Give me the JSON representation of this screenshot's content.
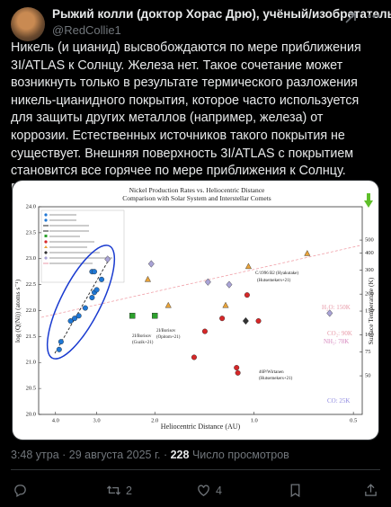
{
  "post": {
    "author": {
      "name": "Рыжий колли (доктор Хорас Дрю), учёный/изобретатель",
      "handle": "@RedCollie1"
    },
    "text": "Никель (и цианид) высвобождаются по мере приближения 3I/ATLAS к Солнцу. Железа нет. Такое сочетание может возникнуть только в результате термического разложения никель-цианидного покрытия, которое часто используется для защиты других металлов (например, железа) от коррозии. Естественных источников такого покрытия не существует. Внешняя поверхность 3I/ATLAS с покрытием становится все горячее по мере приближения к Солнцу. Поэтому мы начинаем видеть никель и цианид в его газообразной коме.",
    "image": {
      "type": "scatter",
      "title": "Nickel Production Rates vs. Heliocentric Distance",
      "subtitle": "Comparison with Solar System and Interstellar Comets",
      "x_label": "Heliocentric Distance (AU)",
      "y_label": "log (Q(Ni)) (atoms s⁻¹)",
      "y2_label": "Surface Temperature (K)",
      "xscale": "log",
      "xlim": [
        4.5,
        0.47
      ],
      "xticks": [
        {
          "value": 4,
          "label": "4.0"
        },
        {
          "value": 3,
          "label": "3.0"
        },
        {
          "value": 2,
          "label": "2.0"
        },
        {
          "value": 1,
          "label": "1.0"
        },
        0.5
      ],
      "ylim": [
        20,
        24
      ],
      "yticks": [
        {
          "value": 20,
          "label": "20.0"
        },
        20.5,
        {
          "value": 21,
          "label": "21.0"
        },
        21.5,
        {
          "value": 22,
          "label": "22.0"
        },
        22.5,
        {
          "value": 23,
          "label": "23.0"
        },
        23.5,
        {
          "value": 24,
          "label": "24.0"
        }
      ],
      "y2scale": "log",
      "y2lim": [
        26,
        880
      ],
      "y2ticks": [
        500,
        400,
        300,
        200,
        150,
        100,
        75,
        50
      ],
      "series": [
        {
          "color": "#1f77d4",
          "marker": "circle",
          "x": [
            3.9,
            3.85,
            3.6,
            3.5,
            3.4,
            3.25,
            3.1,
            3.05,
            3.0,
            3.1,
            3.05,
            2.9
          ],
          "y": [
            21.25,
            21.4,
            21.8,
            21.85,
            21.9,
            22.05,
            22.25,
            22.35,
            22.4,
            22.75,
            22.75,
            22.6
          ]
        },
        {
          "color": "#2ca02c",
          "marker": "square",
          "x": [
            2.34,
            2.0
          ],
          "y": [
            21.9,
            21.9
          ]
        },
        {
          "color": "#d62728",
          "marker": "circle",
          "x": [
            1.41,
            1.52,
            1.25,
            1.05,
            0.97,
            1.13,
            1.12
          ],
          "y": [
            21.6,
            21.1,
            21.85,
            22.3,
            21.8,
            20.9,
            20.8
          ]
        },
        {
          "color": "#e8a33a",
          "marker": "triangle",
          "x": [
            2.1,
            1.82,
            1.22,
            1.04,
            0.69
          ],
          "y": [
            22.6,
            22.1,
            22.1,
            22.85,
            23.1
          ]
        },
        {
          "color": "#a9a3d6",
          "marker": "diamond",
          "x": [
            2.78,
            2.05,
            1.38,
            1.19,
            0.59
          ],
          "y": [
            22.99,
            22.9,
            22.55,
            22.5,
            21.95
          ]
        },
        {
          "color": "#333333",
          "marker": "diamond",
          "x": [
            1.06
          ],
          "y": [
            21.8
          ]
        }
      ],
      "annotations": [
        "C/1996 B2 (Hyakutake)",
        "(Hutsemekers+21)",
        "2I/Borisov",
        "(Guzik+21)",
        "2I/Borisov",
        "(Opitom+21)",
        "46P/Wirtanen",
        "(Hutsemekers+21)"
      ],
      "temperature_labels": [
        {
          "text": "H₂O: 150K",
          "color": "#e89aa8"
        },
        {
          "text": "CO₂: 90K",
          "color": "#e89aa8"
        },
        {
          "text": "NH₃: 78K",
          "color": "#d88ac0"
        },
        {
          "text": "CO: 25K",
          "color": "#8f8ae0"
        }
      ]
    },
    "timestamp": "3:48 утра · 29 августа 2025 г. ·",
    "views": 228,
    "views_label": "Число просмотров",
    "retweets": 2,
    "likes": 4
  }
}
